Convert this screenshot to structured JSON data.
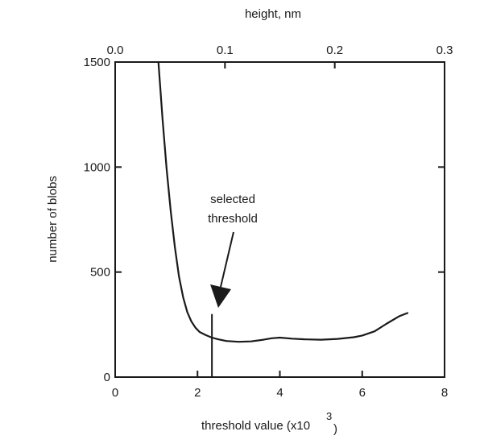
{
  "chart_data": {
    "type": "line",
    "title": "",
    "xlabel": "threshold value (x10",
    "xlabel_sup": "3",
    "xlabel_close": ")",
    "ylabel": "number of blobs",
    "top_xlabel": "height, nm",
    "xlim": [
      0,
      8
    ],
    "ylim": [
      0,
      1500
    ],
    "top_xlim": [
      0.0,
      0.3
    ],
    "x_ticks": [
      {
        "value": 0,
        "label": "0"
      },
      {
        "value": 2,
        "label": "2"
      },
      {
        "value": 4,
        "label": "4"
      },
      {
        "value": 6,
        "label": "6"
      },
      {
        "value": 8,
        "label": "8"
      }
    ],
    "y_ticks": [
      {
        "value": 0,
        "label": "0"
      },
      {
        "value": 500,
        "label": "500"
      },
      {
        "value": 1000,
        "label": "1000"
      },
      {
        "value": 1500,
        "label": "1500"
      }
    ],
    "top_x_ticks": [
      {
        "value": 0.0,
        "label": "0.0"
      },
      {
        "value": 0.1,
        "label": "0.1"
      },
      {
        "value": 0.2,
        "label": "0.2"
      },
      {
        "value": 0.3,
        "label": "0.3"
      }
    ],
    "grid": false,
    "series": [
      {
        "x": [
          1.05,
          1.15,
          1.25,
          1.35,
          1.45,
          1.55,
          1.65,
          1.75,
          1.85,
          1.95,
          2.05,
          2.2,
          2.35,
          2.5,
          2.7,
          3.0,
          3.3,
          3.6,
          3.8,
          4.0,
          4.3,
          4.6,
          5.0,
          5.4,
          5.8,
          6.0,
          6.3,
          6.6,
          6.9,
          7.1
        ],
        "y": [
          1500,
          1230,
          990,
          790,
          620,
          480,
          380,
          310,
          265,
          235,
          215,
          200,
          188,
          180,
          172,
          168,
          170,
          178,
          185,
          188,
          183,
          180,
          178,
          182,
          190,
          198,
          218,
          255,
          290,
          305
        ],
        "color": "#1a1a1a"
      }
    ],
    "marker": {
      "x": 2.35,
      "y_top": 300,
      "y_bottom": 0
    },
    "annotation": {
      "line1": "selected",
      "line2": "threshold",
      "arrow_tip": {
        "x": 2.4,
        "y": 400
      }
    }
  }
}
